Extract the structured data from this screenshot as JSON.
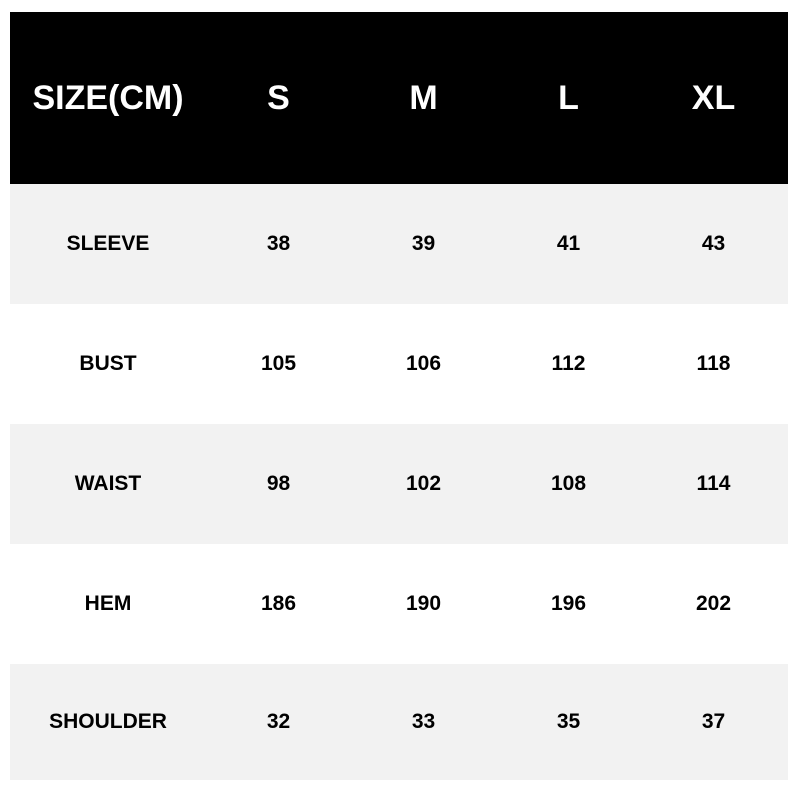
{
  "header": [
    "SIZE(CM)",
    "S",
    "M",
    "L",
    "XL"
  ],
  "rows": [
    {
      "label": "SLEEVE",
      "values": [
        "38",
        "39",
        "41",
        "43"
      ]
    },
    {
      "label": "BUST",
      "values": [
        "105",
        "106",
        "112",
        "118"
      ]
    },
    {
      "label": "WAIST",
      "values": [
        "98",
        "102",
        "108",
        "114"
      ]
    },
    {
      "label": "HEM",
      "values": [
        "186",
        "190",
        "196",
        "202"
      ]
    },
    {
      "label": "SHOULDER",
      "values": [
        "32",
        "33",
        "35",
        "37"
      ]
    }
  ],
  "colors": {
    "header_bg": "#000000",
    "header_text": "#ffffff",
    "stripe": "#f2f2f2"
  }
}
